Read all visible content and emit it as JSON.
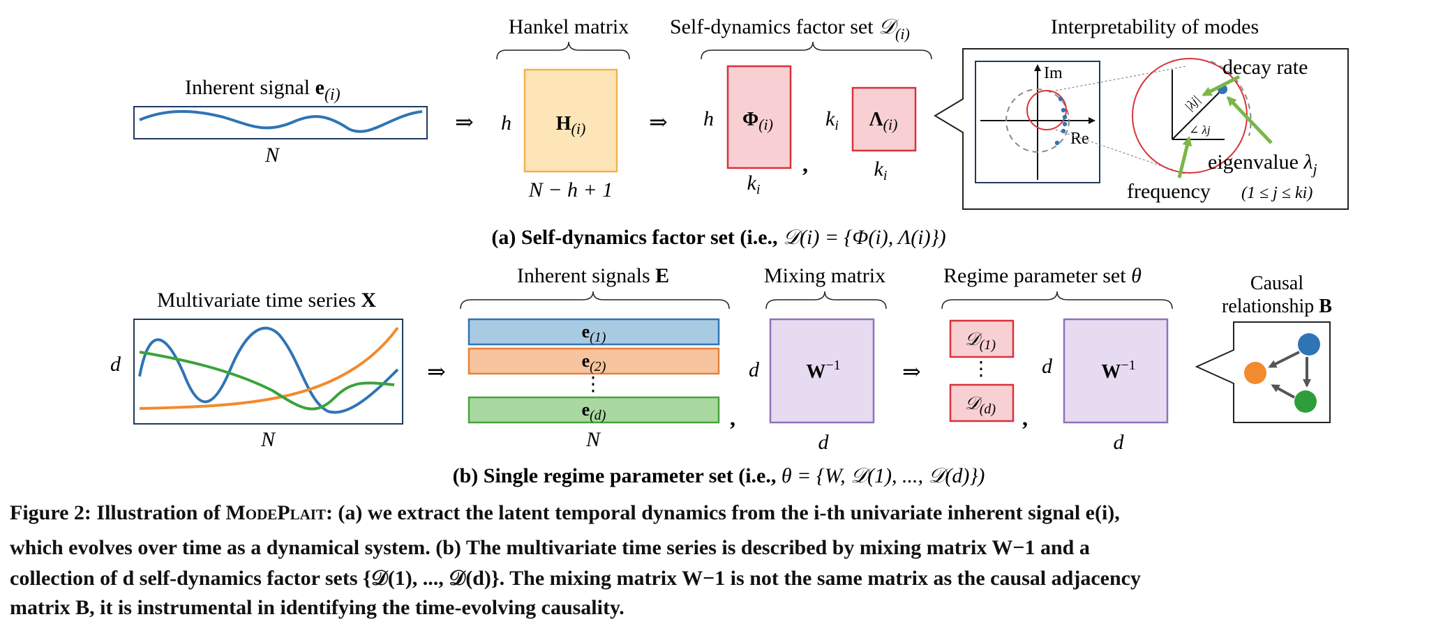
{
  "panel_a": {
    "inherent_signal_label": "Inherent signal",
    "inherent_signal_symbol": "e",
    "inherent_signal_index": "(i)",
    "signal_length": "N",
    "implies_symbol": "⇒",
    "hankel_title": "Hankel matrix",
    "hankel_rows": "h",
    "hankel_matrix": "H",
    "hankel_index": "(i)",
    "hankel_cols": "N − h + 1",
    "factor_set_title": "Self-dynamics factor set",
    "factor_set_symbol": "𝒟",
    "factor_set_index": "(i)",
    "phi_rows": "h",
    "phi_matrix": "Φ",
    "phi_index": "(i)",
    "phi_cols": "k",
    "phi_cols_sub": "i",
    "comma": ",",
    "lambda_rows": "k",
    "lambda_rows_sub": "i",
    "lambda_matrix": "Λ",
    "lambda_index": "(i)",
    "lambda_cols": "k",
    "lambda_cols_sub": "i",
    "modes_title": "Interpretability of modes",
    "axis_im": "Im",
    "axis_re": "Re",
    "decay_rate": "decay rate",
    "magnitude_label": "|λj|",
    "angle_label": "∠ λj",
    "eigenvalue_label": "eigenvalue",
    "eigenvalue_symbol": "λ",
    "eigenvalue_sub": "j",
    "frequency": "frequency",
    "eigen_range": "(1 ≤ j ≤ ki)",
    "caption_prefix": "(a) Self-dynamics factor set (i.e.,",
    "caption_math": "𝒟(i) = {Φ(i), Λ(i)})"
  },
  "panel_b": {
    "mts_title": "Multivariate time series",
    "mts_symbol": "X",
    "mts_rows": "d",
    "mts_cols": "N",
    "implies_symbol": "⇒",
    "inherent_title": "Inherent signals",
    "inherent_symbol": "E",
    "signals": [
      {
        "label": "e",
        "index": "(1)",
        "fill": "#a9cbe2",
        "stroke": "#2f74b5"
      },
      {
        "label": "e",
        "index": "(2)",
        "fill": "#f6c49e",
        "stroke": "#e8803a"
      },
      {
        "label": "e",
        "index": "(d)",
        "fill": "#a9d8a0",
        "stroke": "#49a33e"
      }
    ],
    "vdots": "⋮",
    "signals_cols": "N",
    "mixing_title": "Mixing matrix",
    "mixing_rows": "d",
    "mixing_matrix": "W",
    "mixing_sup": "−1",
    "mixing_cols": "d",
    "regime_title": "Regime parameter set",
    "regime_symbol": "θ",
    "regime_items": [
      {
        "label": "𝒟",
        "index": "(1)"
      },
      {
        "label": "𝒟",
        "index": "(d)"
      }
    ],
    "regime_rows": "d",
    "regime_matrix": "W",
    "regime_sup": "−1",
    "regime_cols": "d",
    "causal_title_1": "Causal",
    "causal_title_2": "relationship",
    "causal_symbol": "B",
    "caption_prefix": "(b) Single regime parameter set (i.e.,",
    "caption_math": "θ = {W, 𝒟(1), ..., 𝒟(d)})"
  },
  "figure_caption": {
    "label": "Figure 2: Illustration of",
    "method": "ModePlait",
    "line1_rest": ": (a) we extract the latent temporal dynamics from the i-th univariate inherent signal e(i),",
    "line2": "which evolves over time as a dynamical system. (b) The multivariate time series is described by mixing matrix W−1 and a",
    "line3": "collection of d self-dynamics factor sets {𝒟(1), ..., 𝒟(d)}. The mixing matrix W−1 is not the same matrix as the causal adjacency",
    "line4": "matrix B, it is instrumental in identifying the time-evolving causality."
  },
  "colors": {
    "signal_blue": "#2f74b5",
    "series_orange": "#f28a2e",
    "series_green": "#3aa33a",
    "hankel_fill": "#fde5b8",
    "hankel_stroke": "#f0b24a",
    "factor_fill": "#f8d0d3",
    "factor_stroke": "#d9313a",
    "mixing_fill": "#e7dbf2",
    "mixing_stroke": "#9170b8",
    "eigen_green": "#7ab648",
    "node_blue": "#2f74b5",
    "node_orange": "#f28a2e",
    "node_green": "#2e9e3a"
  }
}
